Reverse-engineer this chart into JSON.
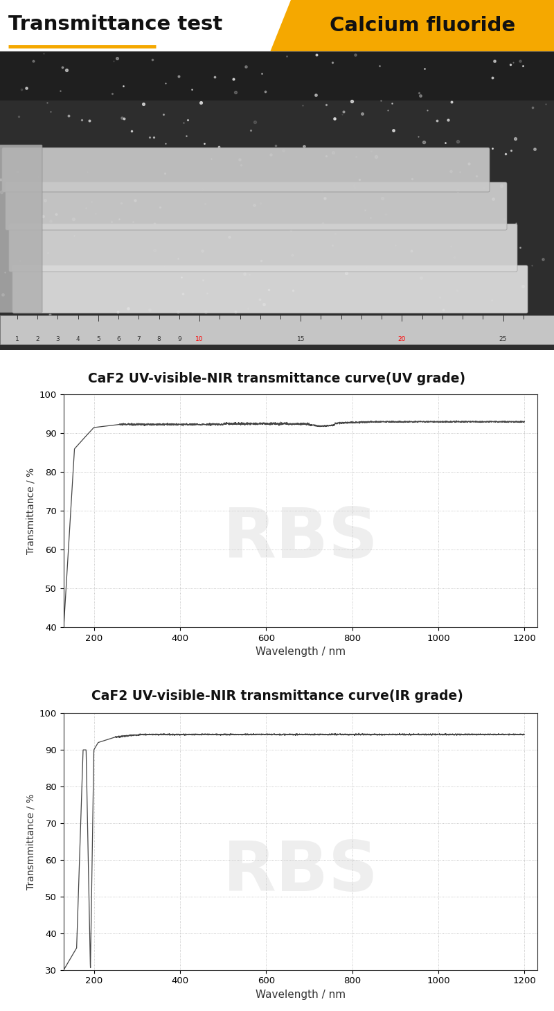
{
  "title_left": "Transmittance test",
  "title_right": "Calcium fluoride",
  "header_bg_color": "#F5A800",
  "chart1_title": "CaF2 UV-visible-NIR transmittance curve(UV grade)",
  "chart2_title": "CaF2 UV-visible-NIR transmittance curve(IR grade)",
  "xlabel": "Wavelength / nm",
  "ylabel1": "Transmittance / %",
  "ylabel2": "Transmmittance / %",
  "chart1_xlim": [
    130,
    1230
  ],
  "chart1_ylim": [
    40,
    100
  ],
  "chart1_yticks": [
    40,
    50,
    60,
    70,
    80,
    90,
    100
  ],
  "chart1_xticks": [
    200,
    400,
    600,
    800,
    1000,
    1200
  ],
  "chart2_xlim": [
    130,
    1230
  ],
  "chart2_ylim": [
    30,
    100
  ],
  "chart2_yticks": [
    30,
    40,
    50,
    60,
    70,
    80,
    90,
    100
  ],
  "chart2_xticks": [
    200,
    400,
    600,
    800,
    1000,
    1200
  ],
  "line_color": "#444444",
  "grid_color": "#999999",
  "bg_color": "#ffffff",
  "watermark_text": "RBS",
  "watermark_color": "#d0d0d0",
  "photo_bg": "#3a3a3a",
  "photo_dark": "#222222"
}
